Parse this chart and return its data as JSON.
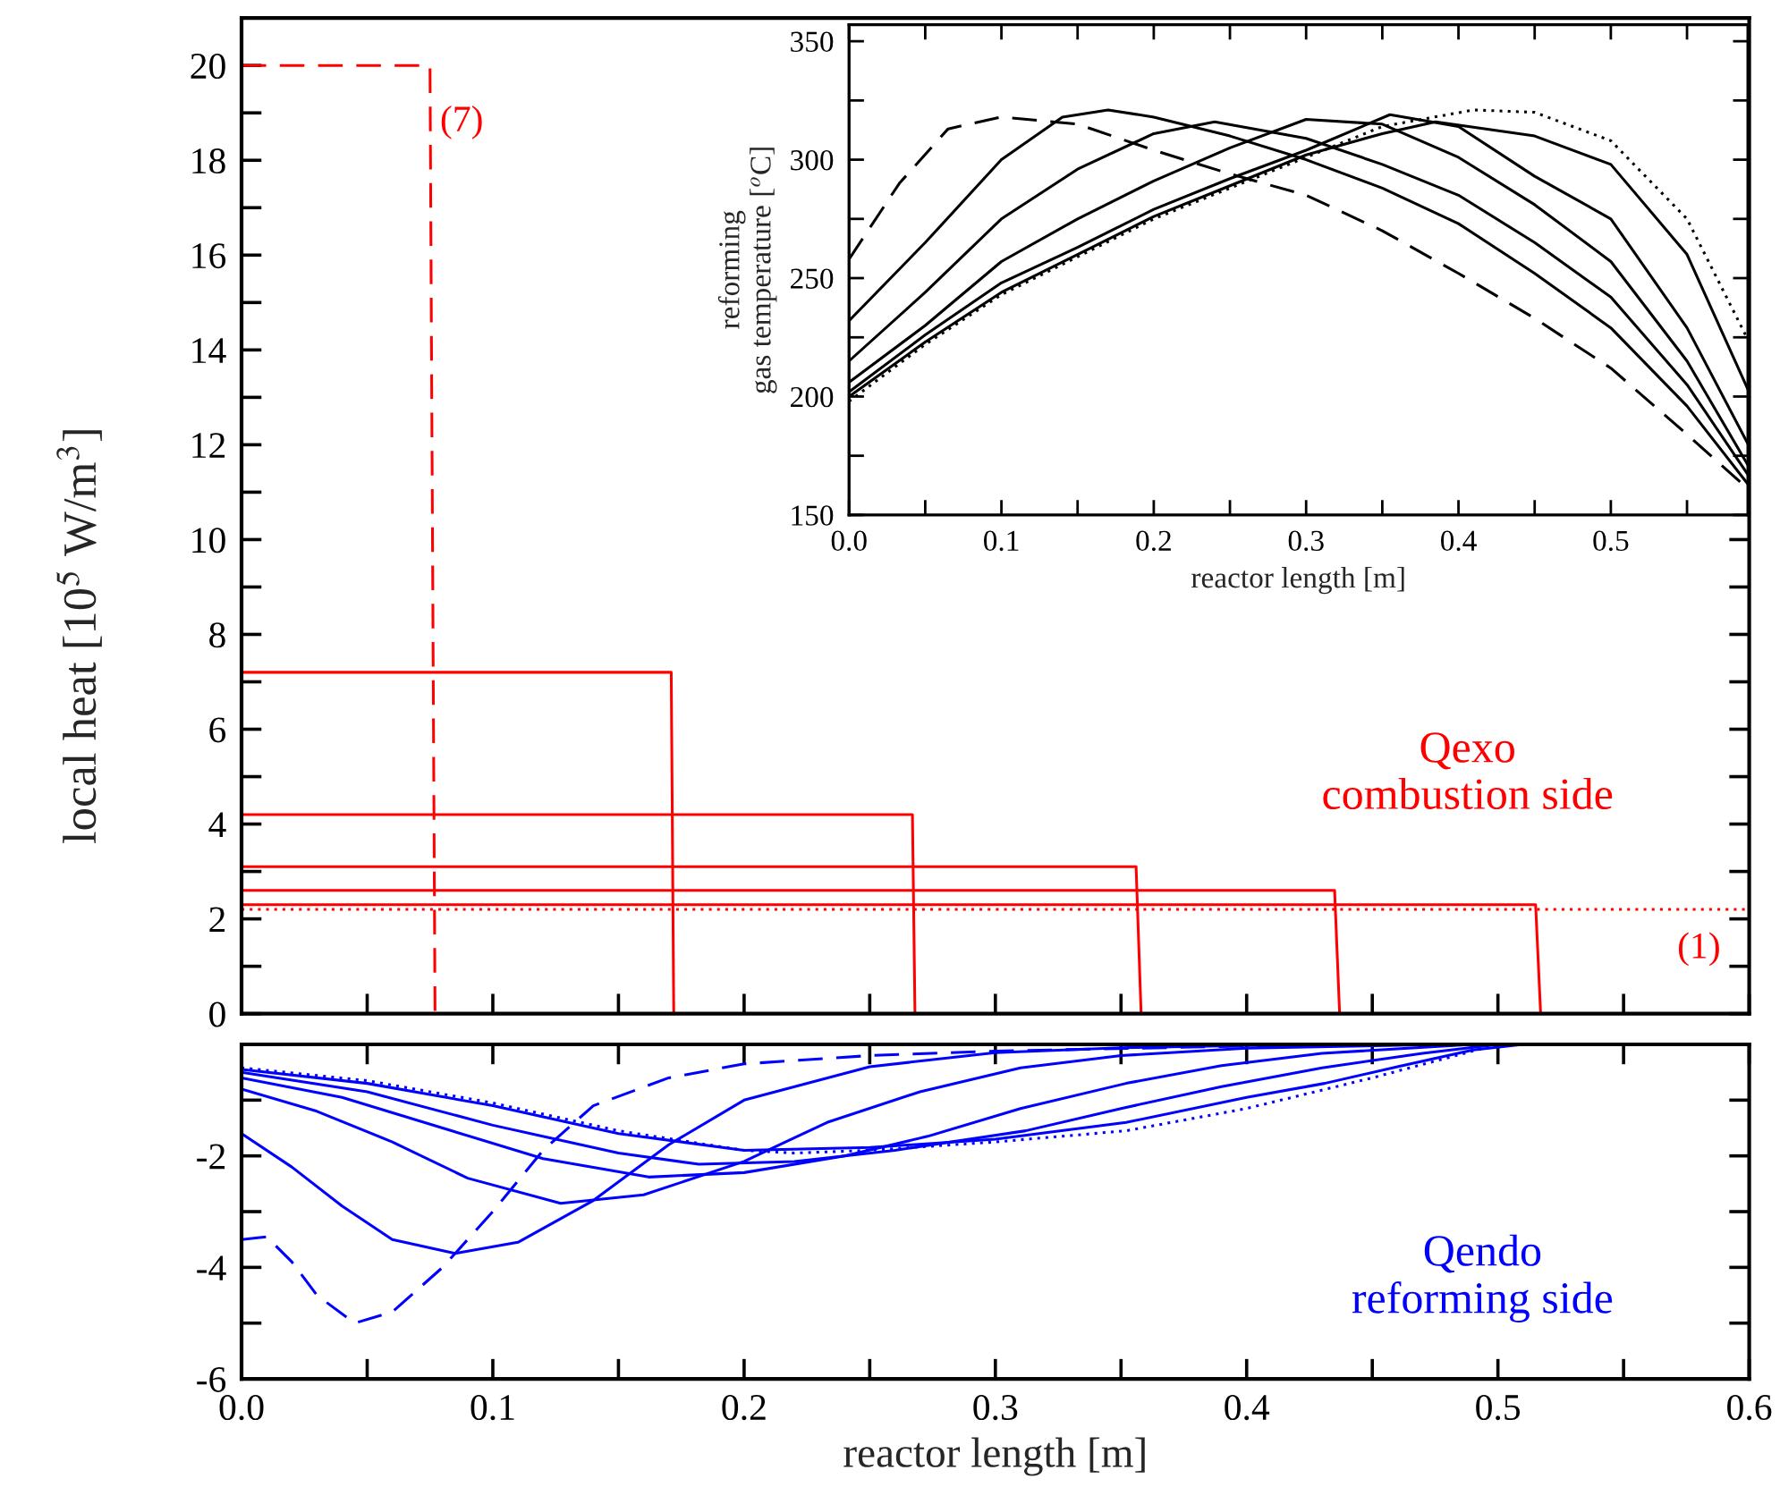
{
  "chart_data": [
    {
      "type": "line",
      "ylabel": "local heat [10$^{5}$ W/m$^{3}$]",
      "xlim": [
        0,
        0.6
      ],
      "ylim": [
        0,
        21
      ],
      "tick_labels": "y",
      "xticks": [
        0,
        0.05,
        0.1,
        0.15,
        0.2,
        0.25,
        0.3,
        0.35,
        0.4,
        0.45,
        0.5,
        0.55,
        0.6
      ],
      "yticks": [
        0,
        {
          "value": 1,
          "label": null
        },
        2,
        {
          "value": 3,
          "label": null
        },
        4,
        {
          "value": 5,
          "label": null
        },
        6,
        {
          "value": 7,
          "label": null
        },
        8,
        {
          "value": 9,
          "label": null
        },
        10,
        {
          "value": 11,
          "label": null
        },
        12,
        {
          "value": 13,
          "label": null
        },
        14,
        {
          "value": 15,
          "label": null
        },
        16,
        {
          "value": 17,
          "label": null
        },
        18,
        {
          "value": 19,
          "label": null
        },
        20
      ],
      "series": [
        {
          "color": "#ff0000",
          "line_style": "dashed",
          "x": [
            0,
            0.075,
            0.077
          ],
          "values": [
            20,
            20,
            0
          ]
        },
        {
          "color": "#ff0000",
          "line_style": "solid",
          "x": [
            0,
            0.171,
            0.172
          ],
          "values": [
            7.2,
            7.2,
            0
          ]
        },
        {
          "color": "#ff0000",
          "line_style": "solid",
          "x": [
            0,
            0.267,
            0.268
          ],
          "values": [
            4.2,
            4.2,
            0
          ]
        },
        {
          "color": "#ff0000",
          "line_style": "solid",
          "x": [
            0,
            0.356,
            0.358
          ],
          "values": [
            3.1,
            3.1,
            0
          ]
        },
        {
          "color": "#ff0000",
          "line_style": "solid",
          "x": [
            0,
            0.435,
            0.437
          ],
          "values": [
            2.6,
            2.6,
            0
          ]
        },
        {
          "color": "#ff0000",
          "line_style": "solid",
          "x": [
            0,
            0.515,
            0.517
          ],
          "values": [
            2.3,
            2.3,
            0
          ]
        },
        {
          "color": "#ff0000",
          "line_style": "dotted",
          "x": [
            0,
            0.6
          ],
          "values": [
            2.2,
            2.2
          ]
        }
      ],
      "annotations": [
        {
          "text": "(7)",
          "x": 0.077,
          "y": 18.8
        },
        {
          "text": "(1)",
          "x": 0.58,
          "y": 2.2
        },
        "Qexo\ncombustion side"
      ]
    },
    {
      "type": "line",
      "xlabel": "reactor length [m]",
      "xlim": [
        0,
        0.6
      ],
      "ylim": [
        -6,
        0
      ],
      "xticks": [
        {
          "value": 0,
          "label": "0.0"
        },
        {
          "value": 0.05,
          "label": null
        },
        {
          "value": 0.1,
          "label": "0.1"
        },
        {
          "value": 0.15,
          "label": null
        },
        {
          "value": 0.2,
          "label": "0.2"
        },
        {
          "value": 0.25,
          "label": null
        },
        {
          "value": 0.3,
          "label": "0.3"
        },
        {
          "value": 0.35,
          "label": null
        },
        {
          "value": 0.4,
          "label": "0.4"
        },
        {
          "value": 0.45,
          "label": null
        },
        {
          "value": 0.5,
          "label": "0.5"
        },
        {
          "value": 0.55,
          "label": null
        },
        {
          "value": 0.6,
          "label": "0.6"
        }
      ],
      "yticks": [
        -6,
        {
          "value": -5,
          "label": null
        },
        -4,
        {
          "value": -3,
          "label": null
        },
        -2,
        {
          "value": -1,
          "label": null
        }
      ],
      "series": [
        {
          "color": "#0000ff",
          "line_style": "dashed",
          "x": [
            0,
            0.01,
            0.02,
            0.03,
            0.045,
            0.06,
            0.08,
            0.1,
            0.12,
            0.14,
            0.17,
            0.2,
            0.25,
            0.3,
            0.4,
            0.46
          ],
          "values": [
            -3.5,
            -3.45,
            -3.9,
            -4.5,
            -5.0,
            -4.8,
            -4.0,
            -3.0,
            -1.9,
            -1.1,
            -0.6,
            -0.35,
            -0.2,
            -0.12,
            -0.03,
            0
          ]
        },
        {
          "color": "#0000ff",
          "line_style": "solid",
          "x": [
            0,
            0.02,
            0.04,
            0.06,
            0.085,
            0.11,
            0.14,
            0.17,
            0.2,
            0.25,
            0.3,
            0.35,
            0.4,
            0.47
          ],
          "values": [
            -1.6,
            -2.2,
            -2.9,
            -3.5,
            -3.75,
            -3.55,
            -2.8,
            -1.8,
            -1.0,
            -0.4,
            -0.15,
            -0.06,
            -0.02,
            0
          ]
        },
        {
          "color": "#0000ff",
          "line_style": "solid",
          "x": [
            0,
            0.03,
            0.06,
            0.09,
            0.127,
            0.16,
            0.2,
            0.233,
            0.27,
            0.31,
            0.35,
            0.4,
            0.48
          ],
          "values": [
            -0.8,
            -1.2,
            -1.75,
            -2.4,
            -2.85,
            -2.7,
            -2.1,
            -1.4,
            -0.85,
            -0.42,
            -0.2,
            -0.07,
            0
          ]
        },
        {
          "color": "#0000ff",
          "line_style": "solid",
          "x": [
            0,
            0.04,
            0.08,
            0.12,
            0.162,
            0.2,
            0.24,
            0.273,
            0.31,
            0.352,
            0.39,
            0.43,
            0.49
          ],
          "values": [
            -0.6,
            -0.95,
            -1.5,
            -2.05,
            -2.38,
            -2.3,
            -2.0,
            -1.65,
            -1.15,
            -0.7,
            -0.38,
            -0.16,
            0
          ]
        },
        {
          "color": "#0000ff",
          "line_style": "solid",
          "x": [
            0,
            0.05,
            0.1,
            0.15,
            0.182,
            0.22,
            0.26,
            0.312,
            0.35,
            0.39,
            0.43,
            0.47,
            0.5
          ],
          "values": [
            -0.5,
            -0.85,
            -1.45,
            -1.95,
            -2.15,
            -2.1,
            -1.9,
            -1.55,
            -1.15,
            -0.76,
            -0.42,
            -0.16,
            0
          ]
        },
        {
          "color": "#0000ff",
          "line_style": "solid",
          "x": [
            0,
            0.05,
            0.1,
            0.15,
            0.2,
            0.25,
            0.3,
            0.352,
            0.4,
            0.431,
            0.46,
            0.49,
            0.51
          ],
          "values": [
            -0.45,
            -0.7,
            -1.1,
            -1.6,
            -1.9,
            -1.85,
            -1.7,
            -1.4,
            -0.95,
            -0.7,
            -0.4,
            -0.1,
            0
          ]
        },
        {
          "color": "#0000ff",
          "line_style": "dotted",
          "x": [
            0,
            0.05,
            0.1,
            0.15,
            0.2,
            0.22,
            0.25,
            0.3,
            0.352,
            0.4,
            0.45,
            0.5
          ],
          "values": [
            -0.42,
            -0.65,
            -1.05,
            -1.55,
            -1.9,
            -1.95,
            -1.9,
            -1.75,
            -1.55,
            -1.15,
            -0.6,
            0
          ]
        }
      ],
      "annotations": [
        "Qendo\nreforming side"
      ]
    },
    {
      "type": "line",
      "xlabel": "reactor length [m]",
      "ylabel": "reforming\ngas temperature [$^{o}$C]",
      "xlim": [
        0,
        0.59
      ],
      "ylim": [
        150,
        357
      ],
      "xticks": [
        {
          "value": 0,
          "label": "0.0"
        },
        {
          "value": 0.05,
          "label": null
        },
        0.1,
        {
          "value": 0.15,
          "label": null
        },
        0.2,
        {
          "value": 0.25,
          "label": null
        },
        0.3,
        {
          "value": 0.35,
          "label": null
        },
        0.4,
        {
          "value": 0.45,
          "label": null
        },
        0.5,
        {
          "value": 0.55,
          "label": null
        }
      ],
      "yticks": [
        150,
        {
          "value": 175,
          "label": null
        },
        200,
        {
          "value": 225,
          "label": null
        },
        250,
        {
          "value": 275,
          "label": null
        },
        300,
        {
          "value": 325,
          "label": null
        },
        350
      ],
      "series": [
        {
          "color": "#000000",
          "line_style": "dashed",
          "x": [
            0,
            0.033,
            0.065,
            0.1,
            0.15,
            0.2,
            0.25,
            0.3,
            0.35,
            0.4,
            0.45,
            0.5,
            0.55,
            0.59
          ],
          "values": [
            258,
            290,
            313,
            318,
            315,
            304,
            294,
            285,
            270,
            252,
            233,
            212,
            184,
            161
          ]
        },
        {
          "color": "#000000",
          "line_style": "solid",
          "x": [
            0,
            0.05,
            0.1,
            0.14,
            0.17,
            0.2,
            0.25,
            0.3,
            0.35,
            0.4,
            0.45,
            0.5,
            0.55,
            0.59
          ],
          "values": [
            232,
            265,
            300,
            318,
            321,
            318,
            310,
            300,
            288,
            273,
            252,
            229,
            196,
            163
          ]
        },
        {
          "color": "#000000",
          "line_style": "solid",
          "x": [
            0,
            0.05,
            0.1,
            0.15,
            0.2,
            0.24,
            0.3,
            0.35,
            0.4,
            0.45,
            0.5,
            0.55,
            0.59
          ],
          "values": [
            215,
            244,
            275,
            296,
            311,
            316,
            309,
            298,
            285,
            265,
            242,
            205,
            167
          ]
        },
        {
          "color": "#000000",
          "line_style": "solid",
          "x": [
            0,
            0.05,
            0.1,
            0.15,
            0.2,
            0.25,
            0.3,
            0.35,
            0.4,
            0.45,
            0.5,
            0.55,
            0.59
          ],
          "values": [
            206,
            230,
            257,
            275,
            291,
            305,
            317,
            315,
            301,
            281,
            257,
            215,
            171
          ]
        },
        {
          "color": "#000000",
          "line_style": "solid",
          "x": [
            0,
            0.05,
            0.1,
            0.15,
            0.2,
            0.25,
            0.3,
            0.355,
            0.4,
            0.45,
            0.5,
            0.55,
            0.59
          ],
          "values": [
            202,
            226,
            248,
            263,
            279,
            292,
            304,
            319,
            314,
            293,
            275,
            229,
            180
          ]
        },
        {
          "color": "#000000",
          "line_style": "solid",
          "x": [
            0,
            0.05,
            0.1,
            0.15,
            0.2,
            0.25,
            0.3,
            0.35,
            0.385,
            0.45,
            0.5,
            0.55,
            0.59
          ],
          "values": [
            200,
            223,
            244,
            260,
            276,
            289,
            302,
            311,
            316,
            310,
            298,
            260,
            203
          ]
        },
        {
          "color": "#000000",
          "line_style": "dotted",
          "x": [
            0,
            0.05,
            0.1,
            0.15,
            0.2,
            0.25,
            0.3,
            0.35,
            0.41,
            0.45,
            0.5,
            0.55,
            0.59
          ],
          "values": [
            198,
            222,
            243,
            259,
            275,
            288,
            301,
            314,
            321,
            320,
            308,
            275,
            224
          ]
        }
      ]
    }
  ]
}
